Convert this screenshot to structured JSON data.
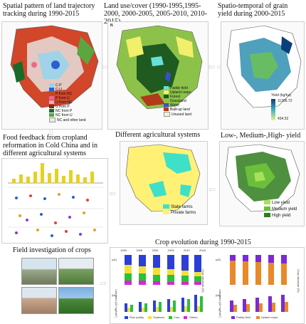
{
  "panels": {
    "p1": {
      "title": "Spatial pattern of land trajectory tracking during 1990-2015",
      "legend": [
        "C-P",
        "C-U",
        "P from NC",
        "P from U",
        "U from NC",
        "U from P",
        "NC from P",
        "NC from U",
        "NC and other land"
      ],
      "colors": [
        "#8ed6f0",
        "#2d5fd0",
        "#c04a1a",
        "#e86a8a",
        "#f2a6c8",
        "#7a2a1a",
        "#1a6a2a",
        "#5aa640",
        "#e8e8e8"
      ]
    },
    "p2": {
      "title": "Land use/cover (1990-1995,1995-2000, 2000-2005, 2005-2010, 2010-2015)",
      "legend": [
        "Paddy field",
        "Upland crops",
        "Forest",
        "Grassland",
        "Water",
        "Built-up land",
        "Unused land"
      ],
      "colors": [
        "#66e0d8",
        "#f2ef6a",
        "#1f5a20",
        "#8cc24a",
        "#3a4fd0",
        "#b23a1a",
        "#f3f3d0"
      ],
      "north": "N"
    },
    "p3": {
      "title": "Spatio-temporal of grain yield during 2000-2015",
      "legend_title": "Yield (kg/ha)",
      "max": "11306.72",
      "min": "434.52"
    },
    "p4": {
      "title": "Food feedback from cropland reformation in Cold China and in different agricultural systems"
    },
    "p5": {
      "title": "Different agricultural systems",
      "legend": [
        "State farms",
        "Private farms"
      ],
      "colors": [
        "#3fe0c8",
        "#fff176"
      ]
    },
    "p6": {
      "title": "Low-, Medium-,High- yield",
      "legend": [
        "Low yield",
        "Medium yield",
        "High yield"
      ],
      "colors": [
        "#a8e05a",
        "#6cbf3a",
        "#2f7d1f"
      ]
    },
    "p7": {
      "title": "Field investigation of crops"
    },
    "p8": {
      "title": "Crop evolution during 1990-2015",
      "years_top": [
        "1990",
        "1995",
        "2000",
        "2005",
        "2010",
        "2015"
      ],
      "left_label_a": "(a1)",
      "left_label_b": "(b1)",
      "right_label_a": "(a2)",
      "right_label_b": "(b2)",
      "yaxis_left": "Crop structure (%)",
      "yaxis_right": "Crop structure (%)",
      "yaxis_left_b": "Unit yield (10⁴ kg/hm²)",
      "yaxis_right_b": "Unit yield (10⁴ kg/hm²)",
      "legend_left": [
        "Rice paddy",
        "Soybean",
        "Corn",
        "Others"
      ],
      "legend_left_colors": [
        "#2b3fd6",
        "#f2e03a",
        "#2bbf3a",
        "#d02bd0"
      ],
      "legend_right": [
        "Paddy field",
        "Upland crops"
      ],
      "legend_right_colors": [
        "#7a2ad6",
        "#e8892a"
      ]
    }
  },
  "arrows": {
    "a12": "⇦ ⇨",
    "a23": "⇦ ⇨",
    "a4": "⇦",
    "a5": "⇩",
    "a56": "⇦",
    "a36": "⇩",
    "a78": "⇨"
  }
}
